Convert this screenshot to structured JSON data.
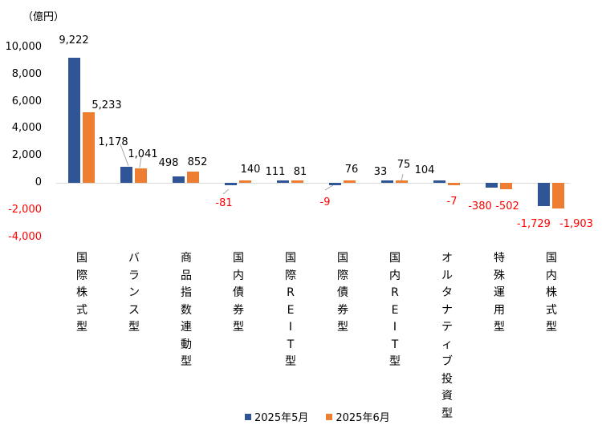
{
  "chart_data": {
    "type": "bar",
    "title": "",
    "unit_label": "（億円）",
    "xlabel": "",
    "ylabel": "億円",
    "ylim": [
      -4000,
      10000
    ],
    "yticks": [
      "10,000",
      "8,000",
      "6,000",
      "4,000",
      "2,000",
      "0",
      "-2,000",
      "-4,000"
    ],
    "grid": false,
    "legend_position": "bottom",
    "categories": [
      "国際株式型",
      "バランス型",
      "商品指数連動型",
      "国内債券型",
      "国際REIT型",
      "国際債券型",
      "国内REIT型",
      "オルタナティブ投資型",
      "特殊運用型",
      "国内株式型"
    ],
    "series": [
      {
        "name": "2025年5月",
        "color": "#2f5597",
        "values": [
          9222,
          1178,
          498,
          -81,
          111,
          -9,
          33,
          104,
          -380,
          -1729
        ],
        "labels": [
          "9,222",
          "1,178",
          "498",
          "-81",
          "111",
          "-9",
          "33",
          "104",
          "-380",
          "-1,729"
        ]
      },
      {
        "name": "2025年6月",
        "color": "#ed7d31",
        "values": [
          5233,
          1041,
          852,
          140,
          81,
          76,
          75,
          -7,
          -502,
          -1903
        ],
        "labels": [
          "5,233",
          "1,041",
          "852",
          "140",
          "81",
          "76",
          "75",
          "-7",
          "-502",
          "-1,903"
        ]
      }
    ],
    "negative_label_color": "#ff0000"
  }
}
